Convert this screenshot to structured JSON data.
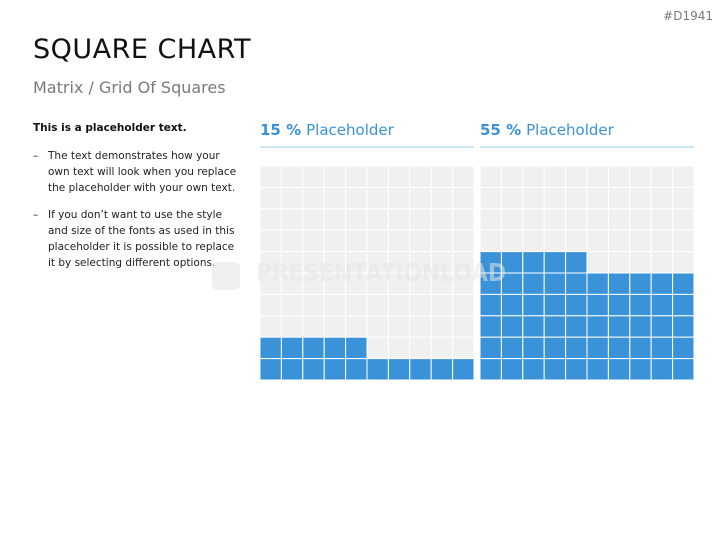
{
  "slide": {
    "id": "#D1941",
    "title": "SQUARE CHART",
    "subtitle": "Matrix / Grid Of Squares",
    "text": {
      "heading": "This is a placeholder text.",
      "bullet_marker": "–",
      "bullets": [
        "The text demonstrates how your own text will look when you replace the placeholder with your own text.",
        "If you don’t want to use the style and size of the fonts as used in this placeholder it is possible to replace it by selecting different options."
      ]
    },
    "watermark": "PRESENTATIONLOAD"
  },
  "chart_data": [
    {
      "type": "waffle",
      "title": "Placeholder",
      "values": [
        15
      ],
      "value_labels": [
        "15 %"
      ],
      "color": "#3a93d8",
      "rows": 10,
      "columns": 10
    },
    {
      "type": "waffle",
      "title": "Placeholder",
      "values": [
        55
      ],
      "value_labels": [
        "55 %"
      ],
      "color": "#3a93d8",
      "rows": 10,
      "columns": 10
    }
  ]
}
